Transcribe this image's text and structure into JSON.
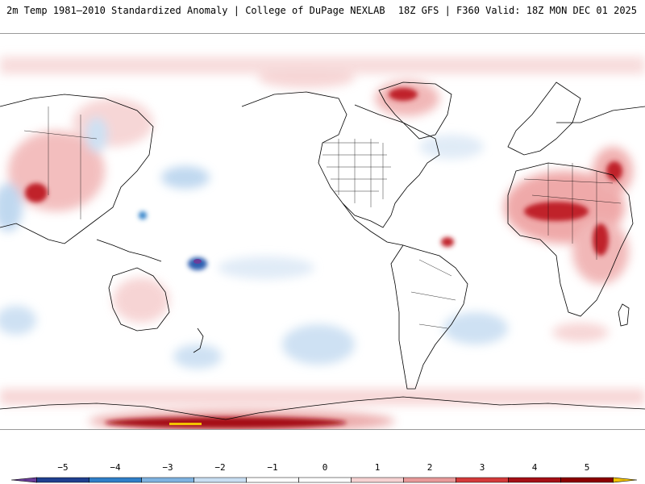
{
  "header": {
    "left_title": "2m Temp 1981–2010 Standardized Anomaly | College of DuPage NEXLAB",
    "right_title": "18Z GFS | F360 Valid: 18Z MON DEC 01 2025"
  },
  "legend": {
    "ticks": [
      "−5",
      "−4",
      "−3",
      "−2",
      "−1",
      "0",
      "1",
      "2",
      "3",
      "4",
      "5"
    ],
    "colors": [
      "#6a3d9a",
      "#1f3f8f",
      "#2f7fc8",
      "#7fb3e0",
      "#c9def2",
      "#ffffff",
      "#ffffff",
      "#f6d2d2",
      "#e89a9a",
      "#d43a3a",
      "#a50f15",
      "#8b0000",
      "#f2c200"
    ]
  },
  "map": {
    "variable": "2m temperature standardized anomaly",
    "projection": "global cylindrical"
  }
}
